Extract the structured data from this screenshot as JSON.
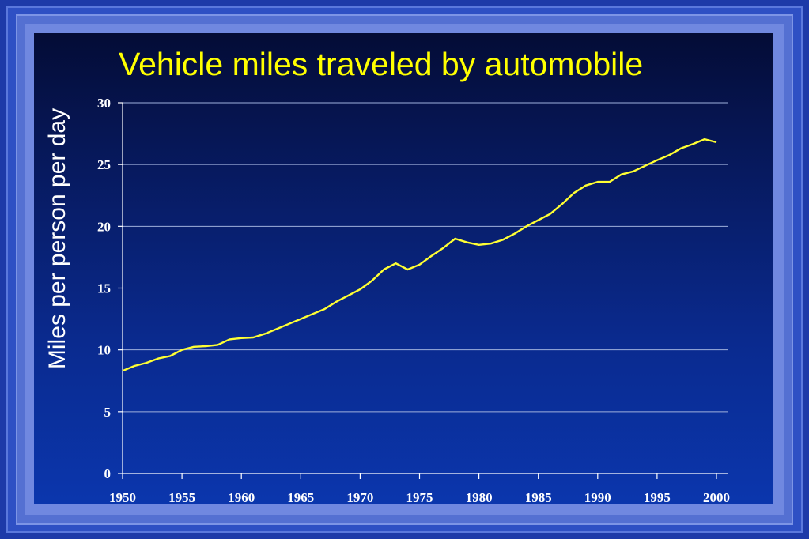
{
  "chart_data": {
    "type": "line",
    "title": "Vehicle miles traveled by automobile",
    "xlabel": "",
    "ylabel": "Miles per person per day",
    "xlim": [
      1950,
      2000
    ],
    "ylim": [
      0,
      30
    ],
    "x_ticks": [
      "1950",
      "1955",
      "1960",
      "1965",
      "1970",
      "1975",
      "1980",
      "1985",
      "1990",
      "1995",
      "2000"
    ],
    "y_ticks": [
      "0",
      "5",
      "10",
      "15",
      "20",
      "25",
      "30"
    ],
    "grid": "horizontal",
    "line_color": "#ffff33",
    "series": [
      {
        "x": [
          1950,
          1951,
          1952,
          1953,
          1954,
          1955,
          1956,
          1957,
          1958,
          1959,
          1960,
          1961,
          1962,
          1963,
          1964,
          1965,
          1966,
          1967,
          1968,
          1969,
          1970,
          1971,
          1972,
          1973,
          1974,
          1975,
          1976,
          1977,
          1978,
          1979,
          1980,
          1981,
          1982,
          1983,
          1984,
          1985,
          1986,
          1987,
          1988,
          1989,
          1990,
          1991,
          1992,
          1993,
          1994,
          1995,
          1996,
          1997,
          1998,
          1999,
          2000
        ],
        "values": [
          8.3,
          8.7,
          8.95,
          9.3,
          9.5,
          10.0,
          10.25,
          10.3,
          10.4,
          10.85,
          10.95,
          11.0,
          11.3,
          11.7,
          12.1,
          12.5,
          12.9,
          13.3,
          13.9,
          14.4,
          14.9,
          15.6,
          16.5,
          17.0,
          16.5,
          16.9,
          17.6,
          18.25,
          19.0,
          18.7,
          18.5,
          18.6,
          18.9,
          19.4,
          20.0,
          20.5,
          21.0,
          21.8,
          22.7,
          23.3,
          23.6,
          23.6,
          24.2,
          24.45,
          24.9,
          25.35,
          25.75,
          26.3,
          26.65,
          27.05,
          26.8
        ]
      }
    ]
  }
}
